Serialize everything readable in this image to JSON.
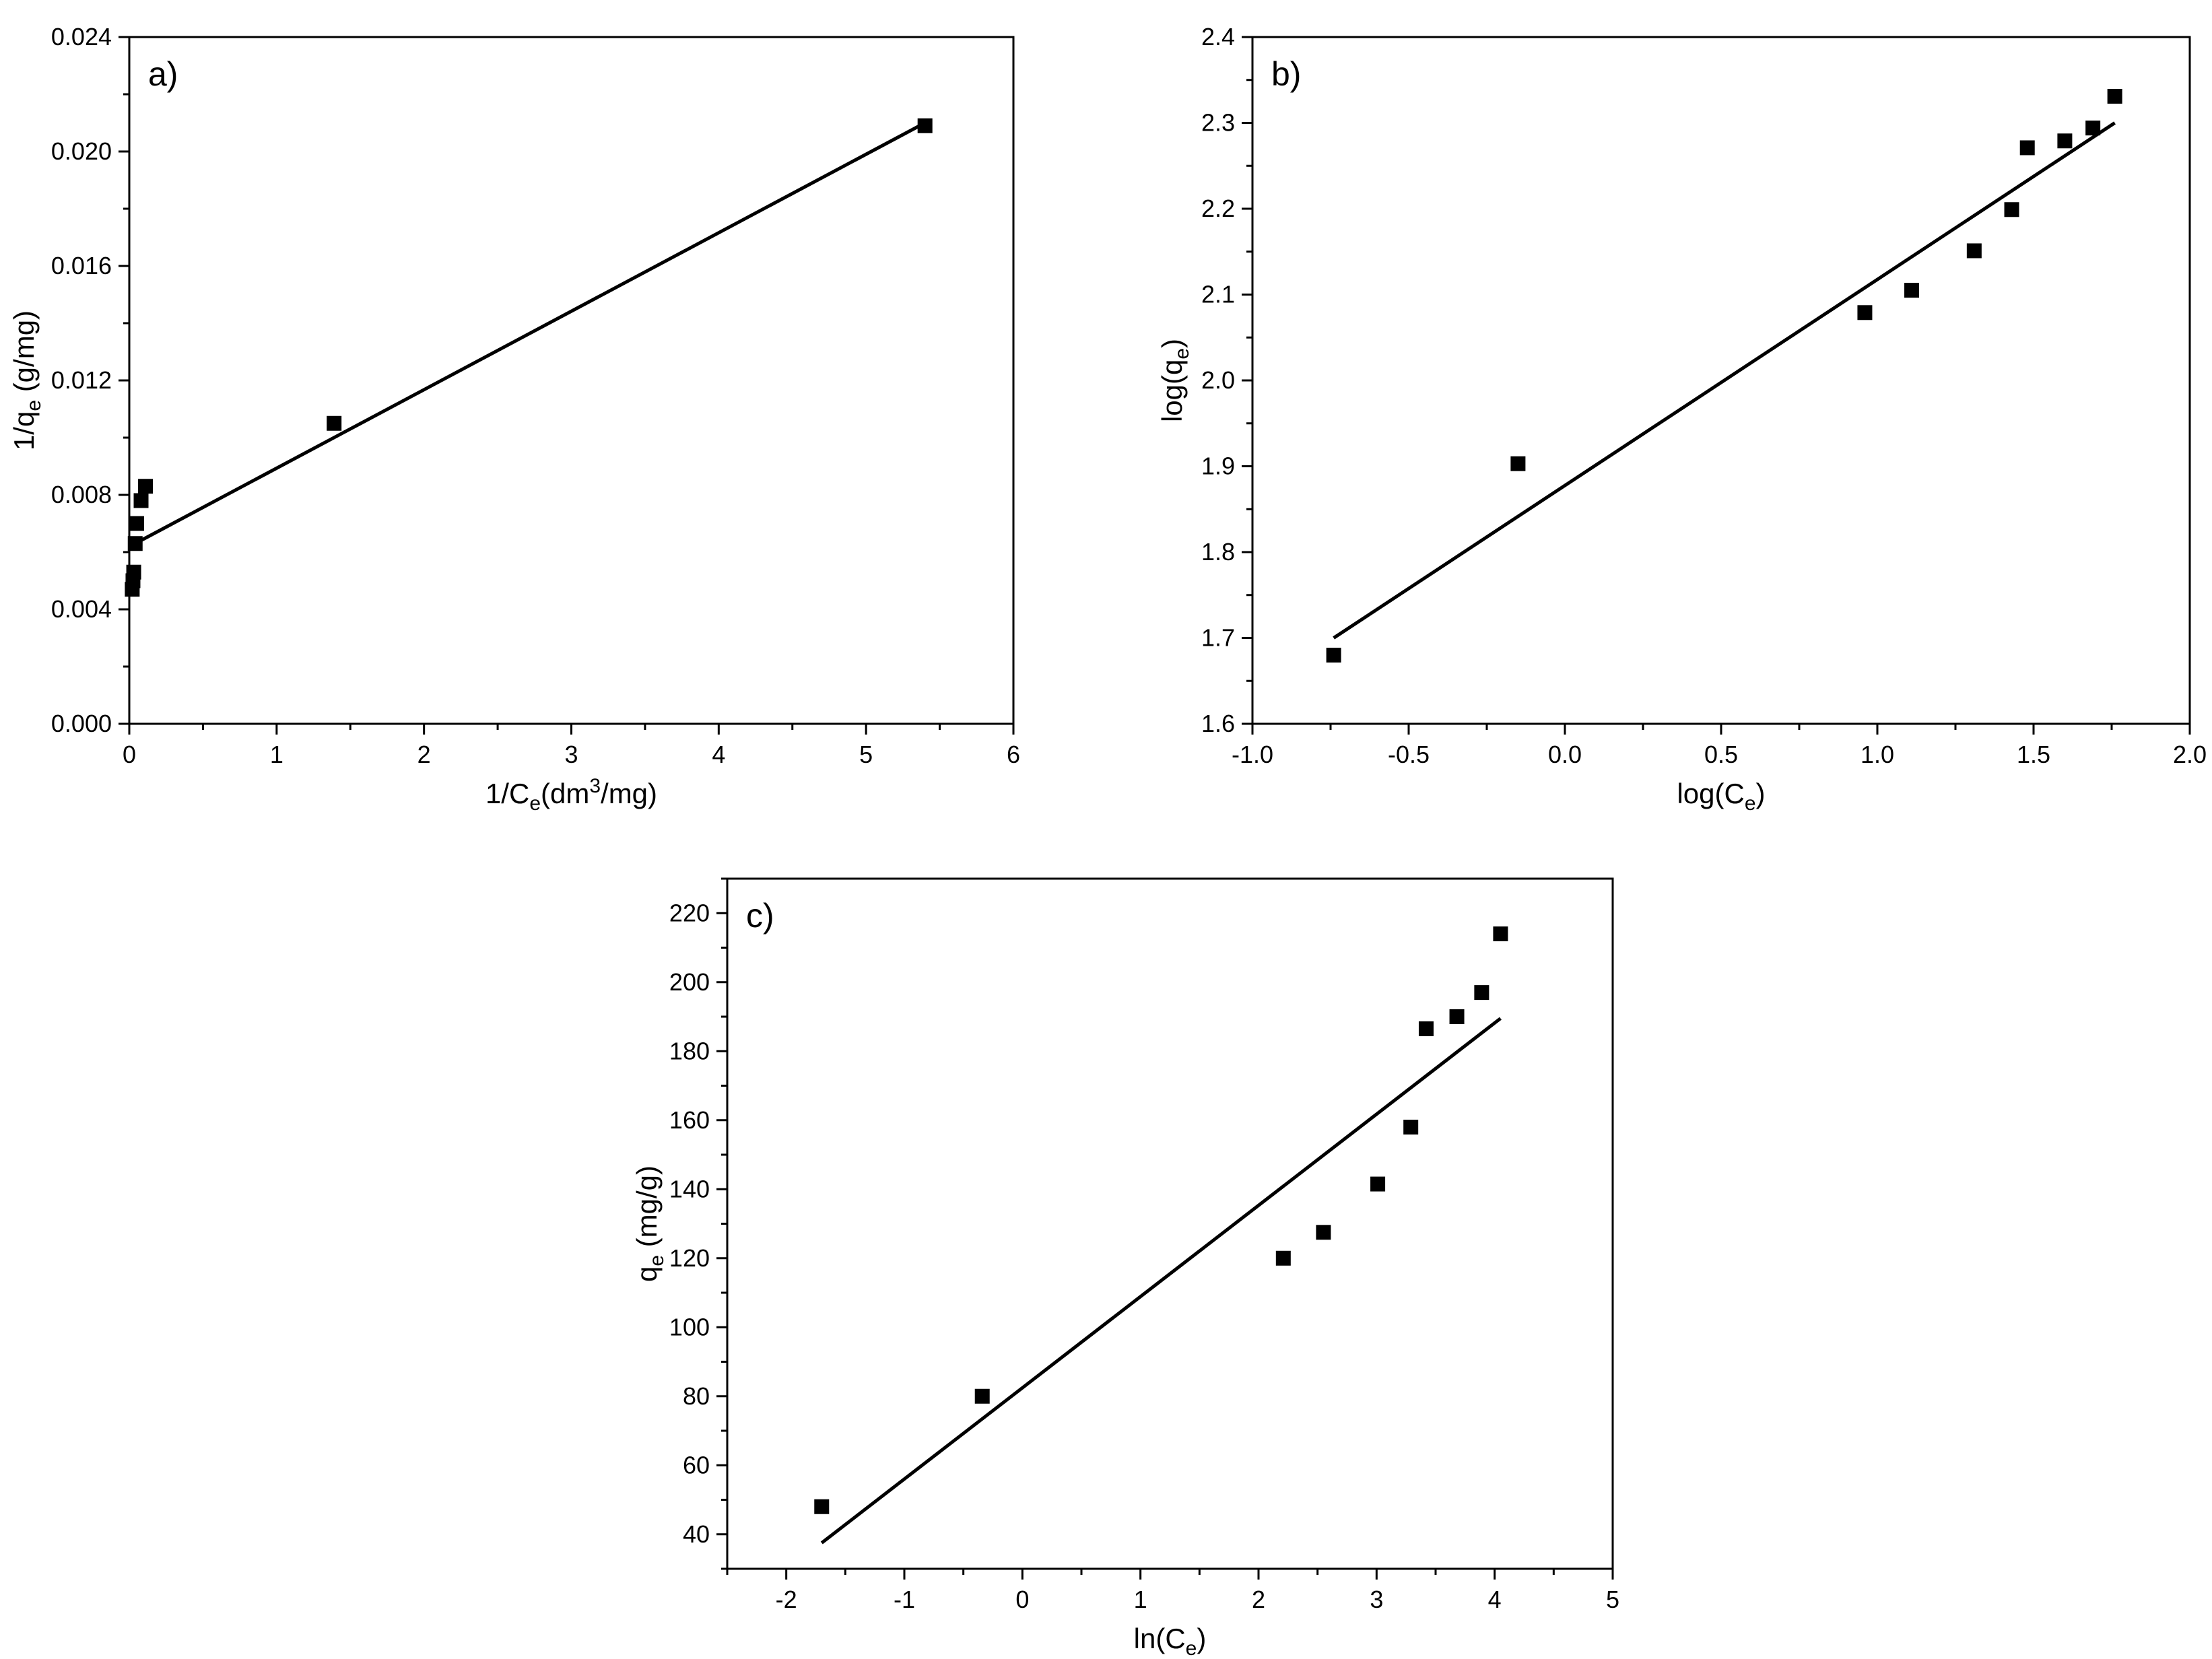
{
  "chart_data": [
    {
      "panel": "a)",
      "type": "scatter",
      "fit_line": true,
      "xlabel": {
        "pre": "1/C",
        "sub": "e",
        "mid": "(dm",
        "sup": "3",
        "post": "/mg)"
      },
      "ylabel": {
        "pre": "1/q",
        "sub": "e",
        "post": " (g/mg)"
      },
      "xlim": [
        0,
        6
      ],
      "ylim": [
        0.0,
        0.024
      ],
      "xticks": [
        0,
        1,
        2,
        3,
        4,
        5,
        6
      ],
      "xtick_labels": [
        "0",
        "1",
        "2",
        "3",
        "4",
        "5",
        "6"
      ],
      "yticks": [
        0.0,
        0.004,
        0.008,
        0.012,
        0.016,
        0.02,
        0.024
      ],
      "ytick_labels": [
        "0.000",
        "0.004",
        "0.008",
        "0.012",
        "0.016",
        "0.020",
        "0.024"
      ],
      "points": [
        {
          "x": 0.02,
          "y": 0.0047
        },
        {
          "x": 0.025,
          "y": 0.005
        },
        {
          "x": 0.03,
          "y": 0.0053
        },
        {
          "x": 0.04,
          "y": 0.0063
        },
        {
          "x": 0.05,
          "y": 0.007
        },
        {
          "x": 0.08,
          "y": 0.0078
        },
        {
          "x": 0.11,
          "y": 0.0083
        },
        {
          "x": 1.39,
          "y": 0.0105
        },
        {
          "x": 5.4,
          "y": 0.0209
        }
      ],
      "line": [
        {
          "x": 0.04,
          "y": 0.0063
        },
        {
          "x": 5.4,
          "y": 0.021
        }
      ]
    },
    {
      "panel": "b)",
      "type": "scatter",
      "fit_line": true,
      "xlabel": {
        "pre": "log(C",
        "sub": "e",
        "post": ")"
      },
      "ylabel": {
        "pre": "log(q",
        "sub": "e",
        "post": ")"
      },
      "xlim": [
        -1.0,
        2.0
      ],
      "ylim": [
        1.6,
        2.4
      ],
      "xticks": [
        -1.0,
        -0.5,
        0.0,
        0.5,
        1.0,
        1.5,
        2.0
      ],
      "xtick_labels": [
        "-1.0",
        "-0.5",
        "0.0",
        "0.5",
        "1.0",
        "1.5",
        "2.0"
      ],
      "yticks": [
        1.6,
        1.7,
        1.8,
        1.9,
        2.0,
        2.1,
        2.2,
        2.3,
        2.4
      ],
      "ytick_labels": [
        "1.6",
        "1.7",
        "1.8",
        "1.9",
        "2.0",
        "2.1",
        "2.2",
        "2.3",
        "2.4"
      ],
      "points": [
        {
          "x": -0.74,
          "y": 1.68
        },
        {
          "x": -0.15,
          "y": 1.903
        },
        {
          "x": 0.96,
          "y": 2.079
        },
        {
          "x": 1.11,
          "y": 2.105
        },
        {
          "x": 1.31,
          "y": 2.151
        },
        {
          "x": 1.43,
          "y": 2.199
        },
        {
          "x": 1.48,
          "y": 2.271
        },
        {
          "x": 1.6,
          "y": 2.279
        },
        {
          "x": 1.69,
          "y": 2.294
        },
        {
          "x": 1.76,
          "y": 2.331
        }
      ],
      "line": [
        {
          "x": -0.74,
          "y": 1.7
        },
        {
          "x": 1.76,
          "y": 2.3
        }
      ]
    },
    {
      "panel": "c)",
      "type": "scatter",
      "fit_line": true,
      "xlabel": {
        "pre": "ln(C",
        "sub": "e",
        "post": ")"
      },
      "ylabel": {
        "pre": "q",
        "sub": "e",
        "post": " (mg/g)"
      },
      "xlim": [
        -2.5,
        5
      ],
      "ylim": [
        30,
        230
      ],
      "xticks": [
        -2,
        -1,
        0,
        1,
        2,
        3,
        4,
        5
      ],
      "xtick_labels": [
        "-2",
        "-1",
        "0",
        "1",
        "2",
        "3",
        "4",
        "5"
      ],
      "yticks": [
        40,
        60,
        80,
        100,
        120,
        140,
        160,
        180,
        200,
        220
      ],
      "ytick_labels": [
        "40",
        "60",
        "80",
        "100",
        "120",
        "140",
        "160",
        "180",
        "200",
        "220"
      ],
      "points": [
        {
          "x": -1.7,
          "y": 48
        },
        {
          "x": -0.34,
          "y": 80
        },
        {
          "x": 2.21,
          "y": 120
        },
        {
          "x": 2.55,
          "y": 127.5
        },
        {
          "x": 3.01,
          "y": 141.5
        },
        {
          "x": 3.29,
          "y": 158
        },
        {
          "x": 3.42,
          "y": 186.5
        },
        {
          "x": 3.68,
          "y": 190
        },
        {
          "x": 3.89,
          "y": 197
        },
        {
          "x": 4.05,
          "y": 214
        }
      ],
      "line": [
        {
          "x": -1.7,
          "y": 37.5
        },
        {
          "x": 4.05,
          "y": 189.5
        }
      ]
    }
  ]
}
